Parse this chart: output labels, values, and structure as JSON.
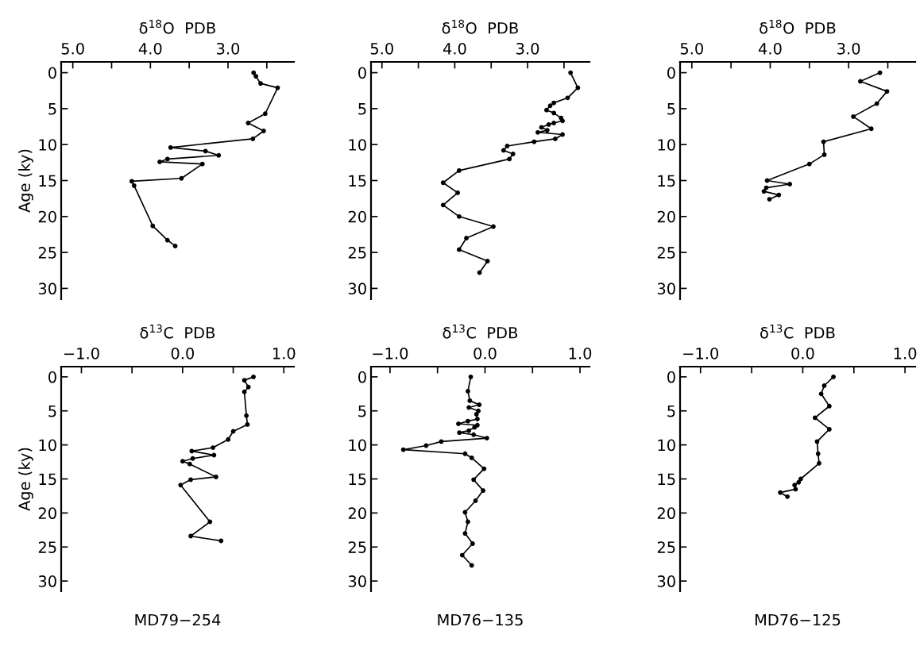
{
  "chart_data": [
    {
      "type": "line",
      "xlabel": "δ$^{18}$O  PDB",
      "ylabel": "Age (ky)",
      "marker": "circle",
      "line_style": "solid",
      "grid": false,
      "legend": false,
      "xlim": [
        5.15,
        2.15
      ],
      "xticks": [
        {
          "value": 5.0,
          "label": "5.0"
        },
        {
          "value": 4.5,
          "label": null
        },
        {
          "value": 4.0,
          "label": "4.0"
        },
        {
          "value": 3.5,
          "label": null
        },
        {
          "value": 3.0,
          "label": "3.0"
        },
        {
          "value": 2.5,
          "label": null
        }
      ],
      "ylim": [
        31.5,
        -1.5
      ],
      "yticks": [
        0,
        5,
        10,
        15,
        20,
        25,
        30
      ],
      "series": [
        {
          "color": "#000000",
          "x": [
            2.67,
            2.64,
            2.58,
            2.36,
            2.52,
            2.74,
            2.54,
            2.68,
            3.74,
            3.29,
            3.12,
            3.78,
            3.88,
            3.33,
            3.6,
            4.24,
            4.21,
            3.97,
            3.78,
            3.68
          ],
          "values": [
            0,
            0.5,
            1.5,
            2.1,
            5.7,
            7.0,
            8.1,
            9.2,
            10.4,
            10.9,
            11.5,
            12.0,
            12.4,
            12.7,
            14.7,
            15.1,
            15.7,
            21.3,
            23.3,
            24.1
          ]
        }
      ]
    },
    {
      "type": "line",
      "xlabel": "δ$^{18}$O  PDB",
      "marker": "circle",
      "line_style": "solid",
      "grid": false,
      "legend": false,
      "xlim": [
        5.15,
        2.15
      ],
      "xticks": [
        {
          "value": 5.0,
          "label": "5.0"
        },
        {
          "value": 4.5,
          "label": null
        },
        {
          "value": 4.0,
          "label": "4.0"
        },
        {
          "value": 3.5,
          "label": null
        },
        {
          "value": 3.0,
          "label": "3.0"
        },
        {
          "value": 2.5,
          "label": null
        }
      ],
      "ylim": [
        31.5,
        -1.5
      ],
      "yticks": [
        0,
        5,
        10,
        15,
        20,
        25,
        30
      ],
      "series": [
        {
          "color": "#000000",
          "x": [
            2.41,
            2.31,
            2.45,
            2.64,
            2.69,
            2.74,
            2.64,
            2.54,
            2.52,
            2.64,
            2.71,
            2.81,
            2.73,
            2.86,
            2.52,
            2.62,
            2.91,
            3.28,
            3.33,
            3.2,
            3.25,
            3.94,
            4.16,
            3.96,
            4.16,
            3.94,
            3.47,
            3.84,
            3.94,
            3.55,
            3.66
          ],
          "values": [
            0,
            2.1,
            3.5,
            4.2,
            4.6,
            5.2,
            5.6,
            6.3,
            6.7,
            7.0,
            7.2,
            7.6,
            8.0,
            8.3,
            8.6,
            9.2,
            9.6,
            10.2,
            10.8,
            11.3,
            12.0,
            13.6,
            15.3,
            16.7,
            18.4,
            20.0,
            21.4,
            23.0,
            24.6,
            26.2,
            27.8
          ]
        }
      ]
    },
    {
      "type": "line",
      "xlabel": "δ$^{18}$O  PDB",
      "marker": "circle",
      "line_style": "solid",
      "grid": false,
      "legend": false,
      "xlim": [
        5.15,
        2.15
      ],
      "xticks": [
        {
          "value": 5.0,
          "label": "5.0"
        },
        {
          "value": 4.5,
          "label": null
        },
        {
          "value": 4.0,
          "label": "4.0"
        },
        {
          "value": 3.5,
          "label": null
        },
        {
          "value": 3.0,
          "label": "3.0"
        },
        {
          "value": 2.5,
          "label": null
        }
      ],
      "ylim": [
        31.5,
        -1.5
      ],
      "yticks": [
        0,
        5,
        10,
        15,
        20,
        25,
        30
      ],
      "series": [
        {
          "color": "#000000",
          "x": [
            2.6,
            2.85,
            2.51,
            2.64,
            2.94,
            2.71,
            3.32,
            3.31,
            3.5,
            4.04,
            3.75,
            4.05,
            4.08,
            3.89,
            4.01
          ],
          "values": [
            0,
            1.2,
            2.6,
            4.3,
            6.1,
            7.8,
            9.6,
            11.4,
            12.7,
            15.0,
            15.5,
            16.0,
            16.5,
            17.0,
            17.6
          ]
        }
      ]
    },
    {
      "type": "line",
      "xlabel": "δ$^{13}$C  PDB",
      "ylabel": "Age (ky)",
      "title": "MD79−254",
      "marker": "circle",
      "line_style": "solid",
      "grid": false,
      "legend": false,
      "xlim": [
        -1.2,
        1.1
      ],
      "xticks": [
        {
          "value": -1.0,
          "label": "−1.0"
        },
        {
          "value": -0.5,
          "label": null
        },
        {
          "value": 0.0,
          "label": "0.0"
        },
        {
          "value": 0.5,
          "label": null
        },
        {
          "value": 1.0,
          "label": "1.0"
        }
      ],
      "ylim": [
        31.5,
        -1.5
      ],
      "yticks": [
        0,
        5,
        10,
        15,
        20,
        25,
        30
      ],
      "series": [
        {
          "color": "#000000",
          "x": [
            0.7,
            0.61,
            0.65,
            0.61,
            0.63,
            0.64,
            0.5,
            0.45,
            0.3,
            0.09,
            0.31,
            0.1,
            0.0,
            0.07,
            0.33,
            0.08,
            -0.02,
            0.27,
            0.08,
            0.38
          ],
          "values": [
            0,
            0.5,
            1.5,
            2.2,
            5.7,
            7.0,
            8.0,
            9.2,
            10.4,
            10.9,
            11.5,
            12.0,
            12.4,
            12.8,
            14.7,
            15.1,
            15.9,
            21.3,
            23.4,
            24.1
          ]
        }
      ]
    },
    {
      "type": "line",
      "xlabel": "δ$^{13}$C  PDB",
      "title": "MD76−135",
      "marker": "circle",
      "line_style": "solid",
      "grid": false,
      "legend": false,
      "xlim": [
        -1.2,
        1.1
      ],
      "xticks": [
        {
          "value": -1.0,
          "label": "−1.0"
        },
        {
          "value": -0.5,
          "label": null
        },
        {
          "value": 0.0,
          "label": "0.0"
        },
        {
          "value": 0.5,
          "label": null
        },
        {
          "value": 1.0,
          "label": "1.0"
        }
      ],
      "ylim": [
        31.5,
        -1.5
      ],
      "yticks": [
        0,
        5,
        10,
        15,
        20,
        25,
        30
      ],
      "series": [
        {
          "color": "#000000",
          "x": [
            -0.15,
            -0.18,
            -0.16,
            -0.06,
            -0.17,
            -0.07,
            -0.09,
            -0.08,
            -0.18,
            -0.28,
            -0.08,
            -0.11,
            -0.17,
            -0.27,
            -0.12,
            0.02,
            -0.46,
            -0.62,
            -0.86,
            -0.21,
            -0.14,
            -0.01,
            -0.12,
            -0.02,
            -0.1,
            -0.21,
            -0.18,
            -0.21,
            -0.13,
            -0.24,
            -0.14
          ],
          "values": [
            0,
            2.1,
            3.5,
            4.1,
            4.5,
            5.0,
            5.5,
            6.2,
            6.5,
            6.9,
            7.1,
            7.4,
            7.9,
            8.2,
            8.5,
            9.0,
            9.5,
            10.1,
            10.7,
            11.3,
            11.9,
            13.5,
            15.1,
            16.7,
            18.2,
            19.9,
            21.3,
            23.0,
            24.5,
            26.2,
            27.7
          ]
        }
      ]
    },
    {
      "type": "line",
      "xlabel": "δ$^{13}$C  PDB",
      "title": "MD76−125",
      "marker": "circle",
      "line_style": "solid",
      "grid": false,
      "legend": false,
      "xlim": [
        -1.2,
        1.1
      ],
      "xticks": [
        {
          "value": -1.0,
          "label": "−1.0"
        },
        {
          "value": -0.5,
          "label": null
        },
        {
          "value": 0.0,
          "label": "0.0"
        },
        {
          "value": 0.5,
          "label": null
        },
        {
          "value": 1.0,
          "label": "1.0"
        }
      ],
      "ylim": [
        31.5,
        -1.5
      ],
      "yticks": [
        0,
        5,
        10,
        15,
        20,
        25,
        30
      ],
      "series": [
        {
          "color": "#000000",
          "x": [
            0.3,
            0.21,
            0.18,
            0.26,
            0.12,
            0.26,
            0.14,
            0.15,
            0.16,
            -0.02,
            -0.04,
            -0.08,
            -0.07,
            -0.22,
            -0.15
          ],
          "values": [
            0,
            1.3,
            2.5,
            4.3,
            6.0,
            7.7,
            9.5,
            11.3,
            12.7,
            15.0,
            15.5,
            15.9,
            16.5,
            17.0,
            17.6
          ]
        }
      ]
    }
  ]
}
